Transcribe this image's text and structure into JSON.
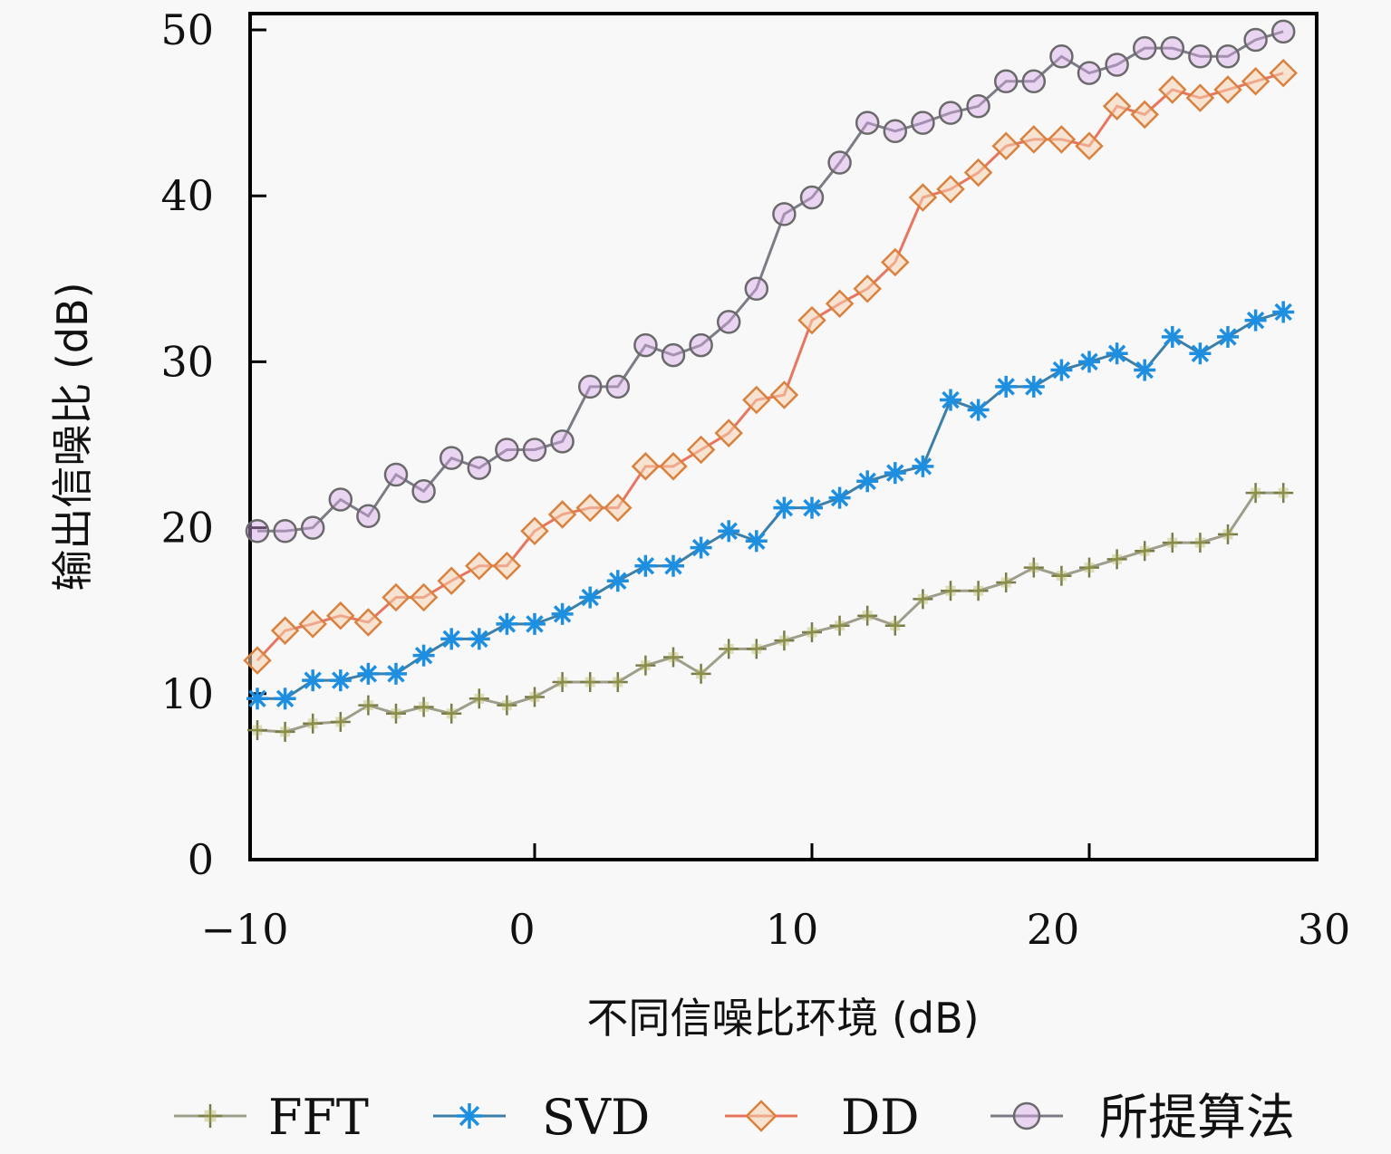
{
  "chart_data": {
    "type": "line",
    "title": "",
    "xlabel": "不同信噪比环境 (dB)",
    "ylabel": "输出信噪比 (dB)",
    "xlim": [
      -10,
      28.2
    ],
    "ylim": [
      0,
      50
    ],
    "xticks": [
      -10,
      0,
      10,
      20,
      30
    ],
    "xtick_labels": [
      "−10",
      "0",
      "10",
      "20",
      "30"
    ],
    "yticks": [
      0,
      10,
      20,
      30,
      40,
      50
    ],
    "ytick_labels": [
      "0",
      "10",
      "20",
      "30",
      "40",
      "50"
    ],
    "grid": false,
    "legend_position": "bottom",
    "x": [
      -10,
      -9,
      -8,
      -7,
      -6,
      -5,
      -4,
      -3,
      -2,
      -1,
      0,
      1,
      2,
      3,
      4,
      5,
      6,
      7,
      8,
      9,
      10,
      11,
      12,
      13,
      14,
      15,
      16,
      17,
      18,
      19,
      20,
      21,
      22,
      23,
      24,
      25,
      26,
      27
    ],
    "series": [
      {
        "name": "FFT",
        "marker": "plus",
        "color": "#9a9a9a",
        "marker_color": "#a8b04a",
        "values": [
          7.8,
          7.7,
          8.2,
          8.3,
          9.3,
          8.8,
          9.2,
          8.8,
          9.7,
          9.3,
          9.8,
          10.7,
          10.7,
          10.7,
          11.7,
          12.2,
          11.2,
          12.7,
          12.7,
          13.2,
          13.7,
          14.1,
          14.7,
          14.1,
          15.7,
          16.2,
          16.2,
          16.7,
          17.6,
          17.1,
          17.6,
          18.1,
          18.6,
          19.1,
          19.1,
          19.6,
          22.1,
          22.1
        ]
      },
      {
        "name": "SVD",
        "marker": "asterisk",
        "color": "#3a7fb0",
        "marker_color": "#1e8fe0",
        "values": [
          9.7,
          9.7,
          10.8,
          10.8,
          11.2,
          11.2,
          12.3,
          13.3,
          13.3,
          14.2,
          14.2,
          14.8,
          15.8,
          16.8,
          17.7,
          17.7,
          18.8,
          19.8,
          19.2,
          21.2,
          21.2,
          21.8,
          22.8,
          23.3,
          23.7,
          27.7,
          27.1,
          28.5,
          28.5,
          29.5,
          30.0,
          30.5,
          29.5,
          31.5,
          30.5,
          31.5,
          32.5,
          33.0
        ]
      },
      {
        "name": "DD",
        "marker": "diamond",
        "color": "#e8705a",
        "marker_color": "#d9823f",
        "values": [
          12.0,
          13.8,
          14.2,
          14.7,
          14.3,
          15.8,
          15.8,
          16.8,
          17.7,
          17.7,
          19.8,
          20.8,
          21.2,
          21.2,
          23.7,
          23.7,
          24.7,
          25.7,
          27.7,
          28.0,
          32.5,
          33.5,
          34.4,
          36.0,
          39.9,
          40.4,
          41.4,
          43.0,
          43.4,
          43.4,
          43.0,
          45.4,
          44.9,
          46.4,
          45.9,
          46.4,
          46.9,
          47.4
        ]
      },
      {
        "name": "所提算法",
        "marker": "circle",
        "color": "#808080",
        "marker_color": "#6e6e6e",
        "values": [
          19.8,
          19.8,
          20.0,
          21.7,
          20.7,
          23.2,
          22.2,
          24.2,
          23.6,
          24.7,
          24.7,
          25.2,
          28.5,
          28.5,
          31.0,
          30.4,
          31.0,
          32.4,
          34.4,
          38.9,
          39.9,
          42.0,
          44.4,
          43.9,
          44.4,
          45.0,
          45.4,
          46.9,
          46.9,
          48.4,
          47.4,
          47.9,
          48.9,
          48.9,
          48.4,
          48.4,
          49.4,
          49.9
        ]
      }
    ]
  }
}
